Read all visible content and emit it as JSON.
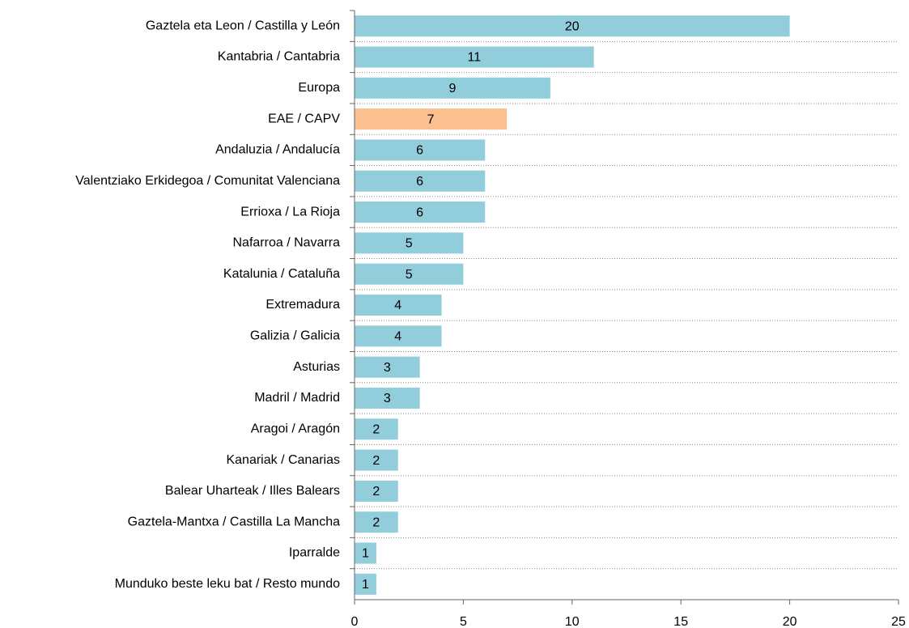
{
  "chart_data": {
    "type": "barh",
    "categories": [
      "Gaztela eta Leon / Castilla y León",
      "Kantabria / Cantabria",
      "Europa",
      "EAE / CAPV",
      "Andaluzia / Andalucía",
      "Valentziako Erkidegoa / Comunitat Valenciana",
      "Errioxa / La Rioja",
      "Nafarroa / Navarra",
      "Katalunia / Cataluña",
      "Extremadura",
      "Galizia / Galicia",
      "Asturias",
      "Madril / Madrid",
      "Aragoi / Aragón",
      "Kanariak / Canarias",
      "Balear Uharteak / Illes Balears",
      "Gaztela-Mantxa / Castilla La Mancha",
      "Iparralde",
      "Munduko beste leku bat / Resto mundo"
    ],
    "values": [
      20,
      11,
      9,
      7,
      6,
      6,
      6,
      5,
      5,
      4,
      4,
      3,
      3,
      2,
      2,
      2,
      2,
      1,
      1
    ],
    "colors": [
      "#92cddc",
      "#92cddc",
      "#92cddc",
      "#fac090",
      "#92cddc",
      "#92cddc",
      "#92cddc",
      "#92cddc",
      "#92cddc",
      "#92cddc",
      "#92cddc",
      "#92cddc",
      "#92cddc",
      "#92cddc",
      "#92cddc",
      "#92cddc",
      "#92cddc",
      "#92cddc",
      "#92cddc"
    ],
    "xlim": [
      0,
      25
    ],
    "xticks": [
      0,
      5,
      10,
      15,
      20,
      25
    ],
    "data_labels": true
  }
}
